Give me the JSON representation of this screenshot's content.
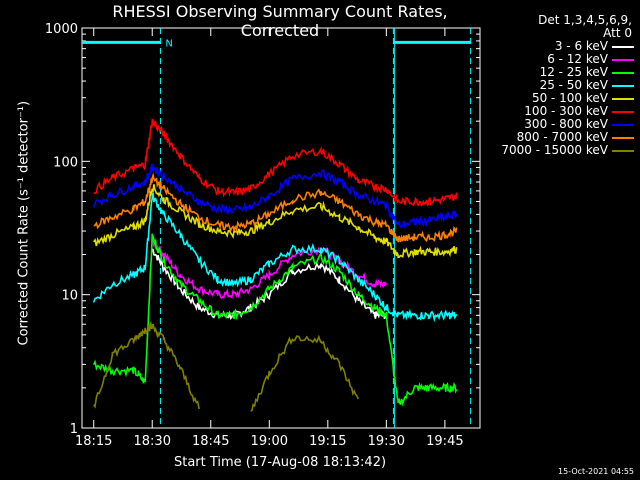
{
  "chart_data": {
    "type": "line",
    "title": "RHESSI Observing Summary Count Rates, Corrected",
    "xlabel": "Start Time (17-Aug-08 18:13:42)",
    "ylabel": "Corrected Count Rate (s⁻¹ detector⁻¹)",
    "yscale": "log",
    "xlim_minutes": [
      18.2,
      19.9
    ],
    "ylim": [
      1,
      1000
    ],
    "x_ticks": [
      "18:15",
      "18:30",
      "18:45",
      "19:00",
      "19:15",
      "19:30",
      "19:45"
    ],
    "y_ticks": [
      "1",
      "10",
      "100",
      "1000"
    ],
    "detectors": "Det 1,3,4,5,6,9,",
    "attenuator": "Att 0",
    "night_marker": "N",
    "legend_position": "right",
    "x": [
      18.25,
      18.33,
      18.42,
      18.47,
      18.5,
      18.55,
      18.62,
      18.7,
      18.78,
      18.85,
      18.92,
      19.0,
      19.1,
      19.22,
      19.3,
      19.38,
      19.45,
      19.5,
      19.55,
      19.62,
      19.68,
      19.75,
      19.8
    ],
    "series": [
      {
        "name": "3 - 6 keV",
        "color": "#ffffff",
        "values": [
          null,
          null,
          null,
          null,
          22,
          16,
          11,
          8,
          7,
          7,
          8,
          10,
          15,
          17,
          13,
          9,
          7,
          7,
          null,
          null,
          null,
          null,
          null
        ]
      },
      {
        "name": "6 - 12 keV",
        "color": "#ff00ff",
        "values": [
          null,
          null,
          null,
          null,
          25,
          20,
          14,
          11,
          10,
          10,
          11,
          14,
          20,
          22,
          18,
          14,
          12,
          12,
          null,
          null,
          null,
          null,
          null
        ]
      },
      {
        "name": "12 - 25 keV",
        "color": "#00ff00",
        "values": [
          3,
          2.7,
          2.7,
          2.2,
          27,
          18,
          12,
          9,
          7,
          7,
          8,
          11,
          16,
          19,
          15,
          10,
          8,
          7,
          1.5,
          2,
          2,
          2,
          2
        ]
      },
      {
        "name": "25 - 50 keV",
        "color": "#00ffff",
        "values": [
          9,
          12,
          14,
          16,
          55,
          40,
          28,
          18,
          13,
          12,
          13,
          17,
          22,
          22,
          18,
          13,
          10,
          8,
          7,
          7,
          7,
          7,
          7
        ]
      },
      {
        "name": "50 - 100 keV",
        "color": "#e0e000",
        "values": [
          24,
          28,
          32,
          36,
          65,
          52,
          42,
          34,
          30,
          29,
          30,
          35,
          43,
          46,
          38,
          32,
          27,
          25,
          20,
          21,
          21,
          21,
          22
        ]
      },
      {
        "name": "100 - 300 keV",
        "color": "#ff0000",
        "values": [
          60,
          75,
          88,
          95,
          200,
          160,
          110,
          75,
          60,
          58,
          62,
          80,
          110,
          120,
          95,
          72,
          65,
          62,
          50,
          50,
          50,
          52,
          55
        ]
      },
      {
        "name": "300 - 800 keV",
        "color": "#0000ff",
        "values": [
          48,
          56,
          65,
          70,
          90,
          78,
          62,
          50,
          44,
          43,
          45,
          55,
          74,
          82,
          70,
          56,
          50,
          47,
          33,
          35,
          36,
          38,
          40
        ]
      },
      {
        "name": "800 - 7000 keV",
        "color": "#ff8000",
        "values": [
          33,
          38,
          44,
          50,
          75,
          62,
          48,
          38,
          33,
          32,
          34,
          40,
          52,
          58,
          50,
          40,
          35,
          33,
          26,
          27,
          27,
          28,
          30
        ]
      },
      {
        "name": "7000 - 15000 keV",
        "color": "#808000",
        "values": [
          1.4,
          3.6,
          4.5,
          5.5,
          5.8,
          4.6,
          2.8,
          1.4,
          null,
          null,
          1.3,
          2.6,
          4.8,
          4.5,
          3,
          1.6,
          null,
          null,
          null,
          null,
          null,
          null,
          null
        ]
      }
    ],
    "intervals": {
      "night_bar_minutes": [
        [
          18.2,
          18.535
        ],
        [
          19.53,
          19.86
        ]
      ],
      "dashed_marker_minutes": [
        18.535,
        19.53,
        19.86
      ]
    }
  },
  "timestamp": "15-Oct-2021 04:55"
}
